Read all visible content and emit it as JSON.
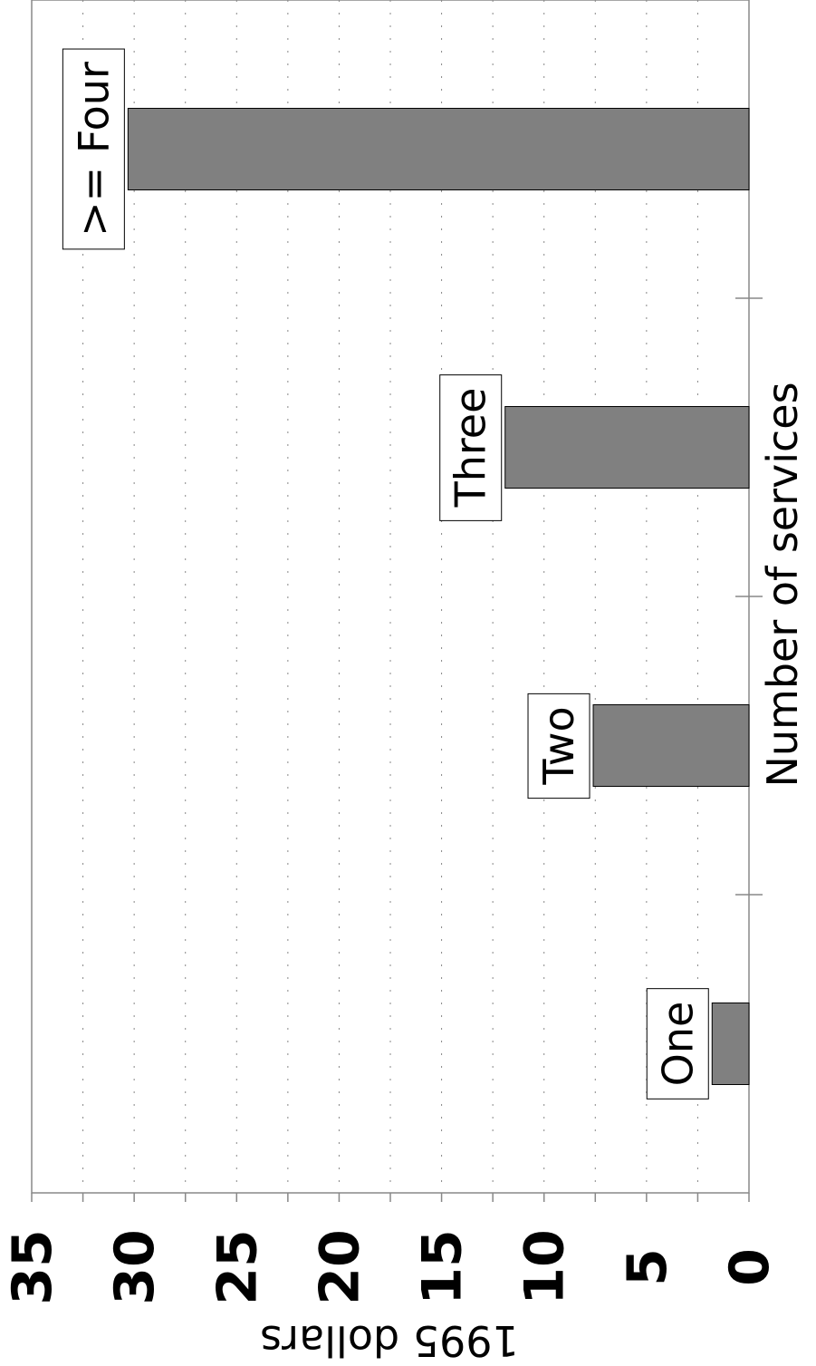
{
  "chart_data": {
    "type": "bar",
    "orientation": "rotated-90",
    "title": "",
    "xlabel": "Number of services",
    "ylabel": "1995 dollars",
    "categories": [
      "One",
      ">= Four",
      "Two",
      "Three"
    ],
    "category_order_in_plot": [
      "One",
      "Two",
      "Three",
      ">= Four"
    ],
    "values": [
      1.8,
      30.3,
      7.6,
      11.9
    ],
    "ylim": [
      0,
      35
    ],
    "yticks": [
      0,
      5,
      10,
      15,
      20,
      25,
      30,
      35
    ],
    "grid": true,
    "bar_color": "#808080"
  }
}
